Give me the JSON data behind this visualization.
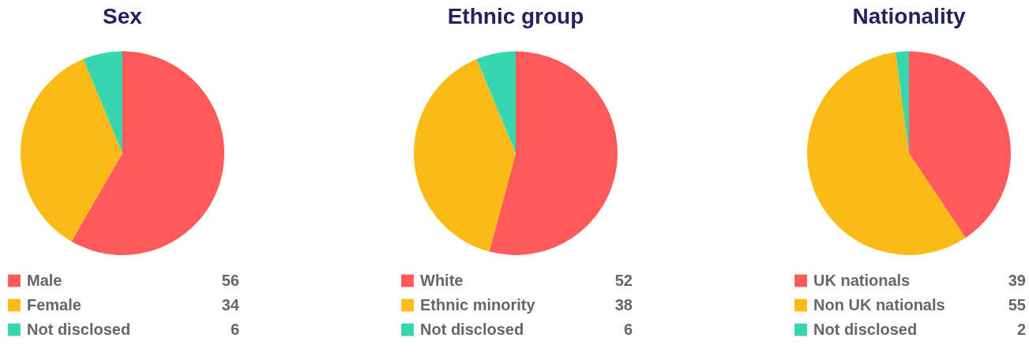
{
  "chart_data": [
    {
      "type": "pie",
      "title": "Sex",
      "categories": [
        "Male",
        "Female",
        "Not disclosed"
      ],
      "values": [
        56,
        34,
        6
      ],
      "colors": [
        "#fe5a5a",
        "#fbba16",
        "#36d6ae"
      ],
      "legend": "bottom",
      "data_labels": true
    },
    {
      "type": "pie",
      "title": "Ethnic group",
      "categories": [
        "White",
        "Ethnic minority",
        "Not disclosed"
      ],
      "values": [
        52,
        38,
        6
      ],
      "colors": [
        "#fe5a5a",
        "#fbba16",
        "#36d6ae"
      ],
      "legend": "bottom",
      "data_labels": true
    },
    {
      "type": "pie",
      "title": "Nationality",
      "categories": [
        "UK nationals",
        "Non UK nationals",
        "Not disclosed"
      ],
      "values": [
        39,
        55,
        2
      ],
      "colors": [
        "#fe5a5a",
        "#fbba16",
        "#36d6ae"
      ],
      "legend": "bottom",
      "data_labels": true
    }
  ]
}
